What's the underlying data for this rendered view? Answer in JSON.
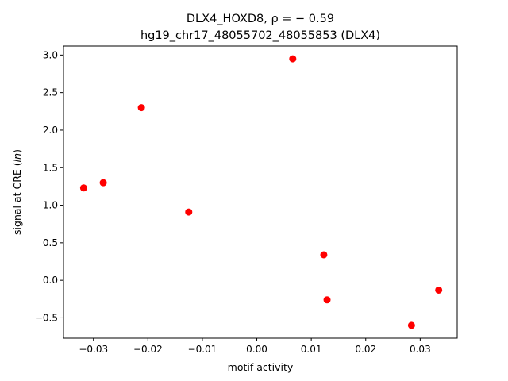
{
  "chart_data": {
    "type": "scatter",
    "title_line1": "DLX4_HOXD8, ρ = − 0.59",
    "title_line2": "hg19_chr17_48055702_48055853 (DLX4)",
    "xlabel": "motif activity",
    "ylabel": "signal at CRE (ln)",
    "xlim": [
      -0.0355,
      0.0368
    ],
    "ylim": [
      -0.77,
      3.12
    ],
    "xticks": [
      -0.03,
      -0.02,
      -0.01,
      0.0,
      0.01,
      0.02,
      0.03
    ],
    "xtick_labels": [
      "−0.03",
      "−0.02",
      "−0.01",
      "0.00",
      "0.01",
      "0.02",
      "0.03"
    ],
    "yticks": [
      -0.5,
      0.0,
      0.5,
      1.0,
      1.5,
      2.0,
      2.5,
      3.0
    ],
    "ytick_labels": [
      "−0.5",
      "0.0",
      "0.5",
      "1.0",
      "1.5",
      "2.0",
      "2.5",
      "3.0"
    ],
    "grid": false,
    "marker_color": "#ff0000",
    "points": [
      {
        "x": -0.0318,
        "y": 1.23
      },
      {
        "x": -0.0282,
        "y": 1.3
      },
      {
        "x": -0.0212,
        "y": 2.3
      },
      {
        "x": -0.0125,
        "y": 0.91
      },
      {
        "x": 0.0066,
        "y": 2.95
      },
      {
        "x": 0.0123,
        "y": 0.34
      },
      {
        "x": 0.0129,
        "y": -0.26
      },
      {
        "x": 0.0284,
        "y": -0.6
      },
      {
        "x": 0.0334,
        "y": -0.13
      }
    ]
  }
}
